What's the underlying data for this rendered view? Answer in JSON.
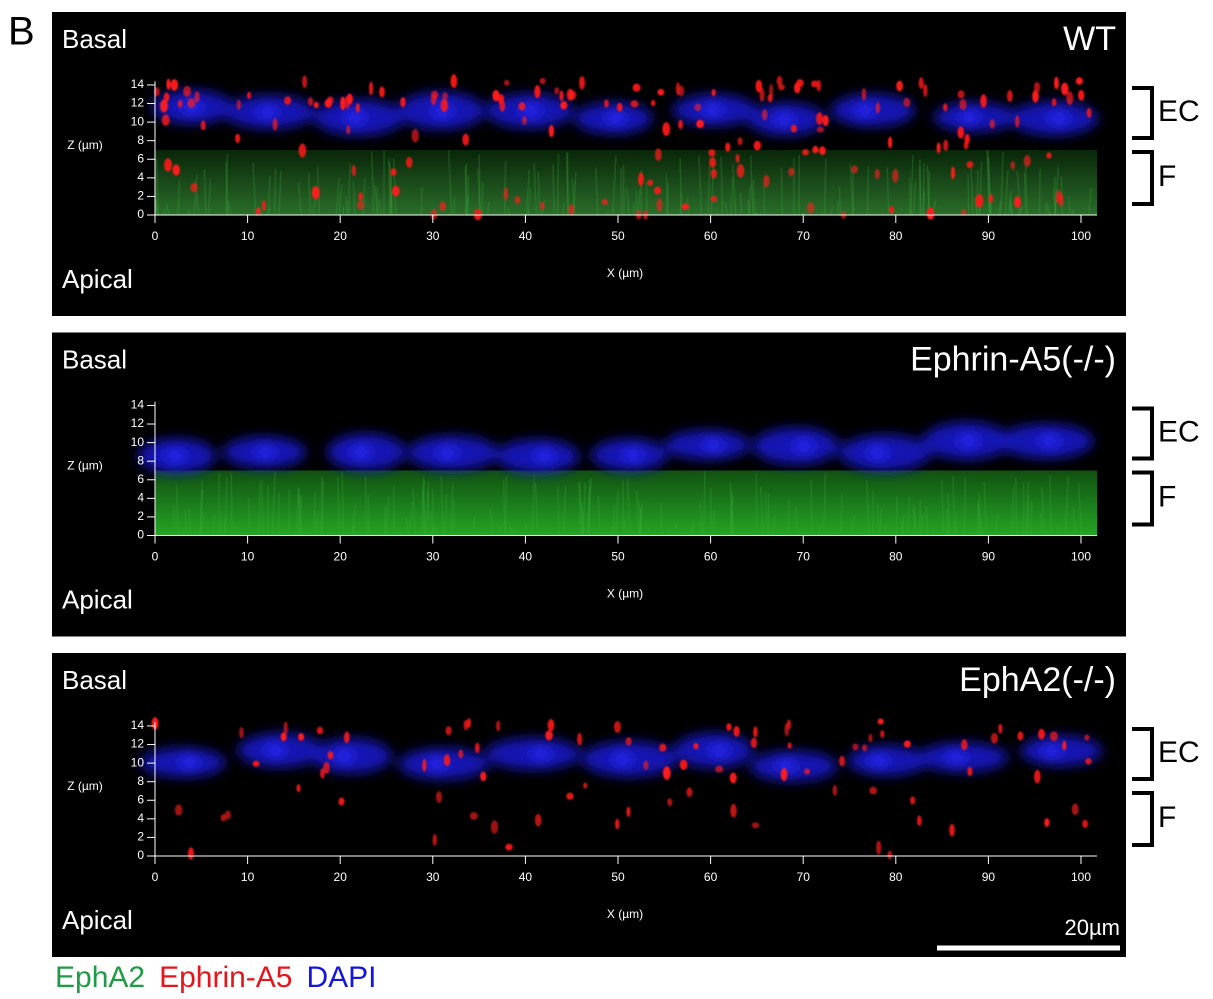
{
  "panel_letter": "B",
  "panels": [
    {
      "title": "WT",
      "top_label": "Basal",
      "bottom_label": "Apical",
      "z_label": "Z (µm)",
      "x_label": "X (µm)",
      "zticks": [
        0,
        2,
        4,
        6,
        8,
        10,
        12,
        14
      ],
      "xticks": [
        0,
        10,
        20,
        30,
        40,
        50,
        60,
        70,
        80,
        90,
        100
      ],
      "brackets": [
        "EC",
        "F"
      ]
    },
    {
      "title": "Ephrin-A5(-/-)",
      "top_label": "Basal",
      "bottom_label": "Apical",
      "z_label": "Z (µm)",
      "x_label": "X (µm)",
      "zticks": [
        0,
        2,
        4,
        6,
        8,
        10,
        12,
        14
      ],
      "xticks": [
        0,
        10,
        20,
        30,
        40,
        50,
        60,
        70,
        80,
        90,
        100
      ],
      "brackets": [
        "EC",
        "F"
      ]
    },
    {
      "title": "EphA2(-/-)",
      "top_label": "Basal",
      "bottom_label": "Apical",
      "z_label": "Z (µm)",
      "x_label": "X (µm)",
      "zticks": [
        0,
        2,
        4,
        6,
        8,
        10,
        12,
        14
      ],
      "xticks": [
        0,
        10,
        20,
        30,
        40,
        50,
        60,
        70,
        80,
        90,
        100
      ],
      "brackets": [
        "EC",
        "F"
      ]
    }
  ],
  "scale_bar": "20µm",
  "legend": [
    {
      "label": "EphA2",
      "color": "#1f9a45"
    },
    {
      "label": "Ephrin-A5",
      "color": "#e8141c"
    },
    {
      "label": "DAPI",
      "color": "#1515e0"
    }
  ]
}
